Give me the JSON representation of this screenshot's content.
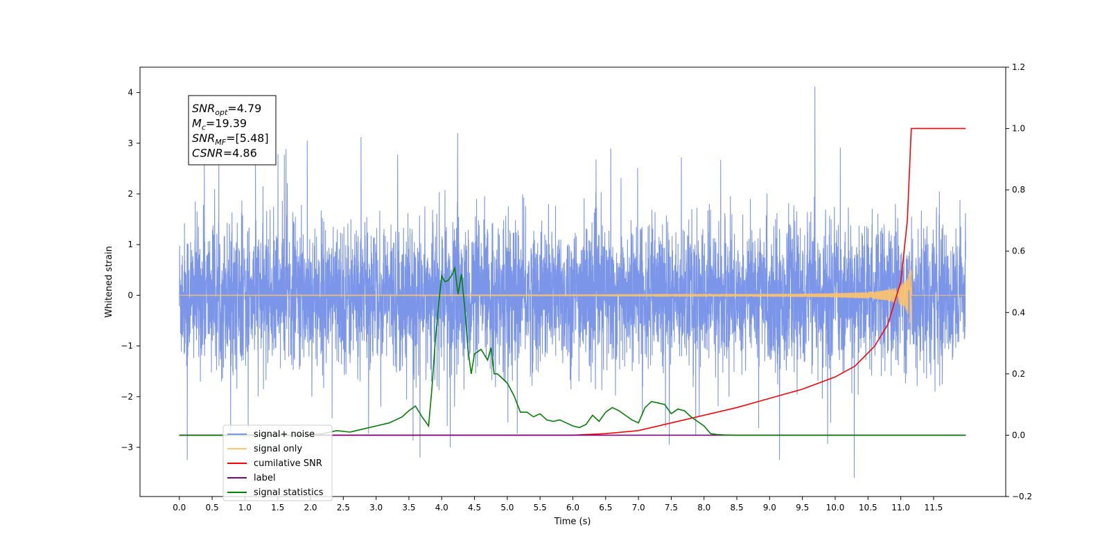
{
  "chart_data": {
    "type": "line",
    "xlabel": "Time (s)",
    "ylabel": "Whitened strain",
    "xlim": [
      -0.6,
      12.6
    ],
    "ylim": [
      -3.97,
      4.5
    ],
    "y2lim": [
      -0.2,
      1.2
    ],
    "x_ticks": [
      "0.0",
      "0.5",
      "1.0",
      "1.5",
      "2.0",
      "2.5",
      "3.0",
      "3.5",
      "4.0",
      "4.5",
      "5.0",
      "5.5",
      "6.0",
      "6.5",
      "7.0",
      "7.5",
      "8.0",
      "8.5",
      "9.0",
      "9.5",
      "10.0",
      "10.5",
      "11.0",
      "11.5"
    ],
    "y_ticks": [
      "4",
      "3",
      "2",
      "1",
      "0",
      "−1",
      "−2",
      "−3"
    ],
    "y2_ticks": [
      "1.2",
      "1.0",
      "0.8",
      "0.6",
      "0.4",
      "0.2",
      "0.0",
      "−0.2"
    ],
    "grid": false,
    "legend_position": "lower-left",
    "annotation": {
      "lines": [
        {
          "sym": "SNR",
          "sub": "opt",
          "value": "=4.79"
        },
        {
          "sym": "M",
          "sub": "c",
          "value": "=19.39"
        },
        {
          "sym": "SNR",
          "sub": "MF",
          "value": "=[5.48]"
        },
        {
          "sym": "CSNR",
          "sub": "",
          "value": "=4.86"
        }
      ]
    },
    "series": [
      {
        "name": "signal+ noise",
        "color": "#7b95e8",
        "axis": "left",
        "description_values": {
          "x_start": 0.0,
          "x_end": 11.99,
          "noise_std": 0.7,
          "peak_max": 4.12,
          "peak_min": -3.6
        }
      },
      {
        "name": "signal only",
        "color": "#ffc36a",
        "axis": "left",
        "chirp_peak_time": 11.16,
        "chirp_peak_amplitude": 0.75
      },
      {
        "name": "cumilative SNR",
        "color": "#ff0000",
        "axis": "right",
        "x": [
          0.0,
          6.0,
          6.5,
          7.0,
          7.5,
          8.0,
          8.5,
          9.0,
          9.5,
          10.0,
          10.3,
          10.6,
          10.8,
          11.0,
          11.1,
          11.16,
          11.99
        ],
        "y": [
          0.0,
          0.0,
          0.005,
          0.015,
          0.04,
          0.065,
          0.09,
          0.12,
          0.15,
          0.19,
          0.225,
          0.29,
          0.36,
          0.5,
          0.7,
          1.0,
          1.0
        ]
      },
      {
        "name": "label",
        "color": "#800080",
        "axis": "right",
        "x": [
          0.0,
          11.99
        ],
        "y": [
          0.0,
          0.0
        ]
      },
      {
        "name": "signal statistics",
        "color": "#008000",
        "axis": "right",
        "x": [
          0.0,
          2.0,
          2.2,
          2.4,
          2.6,
          2.8,
          3.0,
          3.2,
          3.4,
          3.5,
          3.6,
          3.7,
          3.8,
          3.85,
          3.9,
          3.95,
          4.0,
          4.05,
          4.1,
          4.15,
          4.2,
          4.25,
          4.3,
          4.35,
          4.4,
          4.45,
          4.5,
          4.6,
          4.7,
          4.75,
          4.8,
          4.85,
          5.0,
          5.1,
          5.2,
          5.3,
          5.4,
          5.5,
          5.6,
          5.7,
          5.8,
          5.9,
          6.0,
          6.1,
          6.2,
          6.3,
          6.4,
          6.5,
          6.6,
          6.7,
          6.8,
          6.9,
          7.0,
          7.1,
          7.2,
          7.3,
          7.4,
          7.5,
          7.6,
          7.7,
          7.8,
          7.9,
          8.0,
          8.1,
          8.2,
          8.3,
          8.5,
          8.7,
          9.0,
          11.99
        ],
        "y": [
          0.0,
          0.0,
          0.005,
          0.015,
          0.01,
          0.02,
          0.03,
          0.04,
          0.06,
          0.08,
          0.095,
          0.06,
          0.03,
          0.15,
          0.3,
          0.42,
          0.52,
          0.5,
          0.505,
          0.52,
          0.545,
          0.46,
          0.525,
          0.42,
          0.28,
          0.2,
          0.265,
          0.28,
          0.245,
          0.285,
          0.2,
          0.2,
          0.17,
          0.13,
          0.075,
          0.075,
          0.06,
          0.07,
          0.05,
          0.045,
          0.05,
          0.04,
          0.03,
          0.025,
          0.035,
          0.065,
          0.045,
          0.075,
          0.09,
          0.08,
          0.065,
          0.05,
          0.04,
          0.09,
          0.11,
          0.105,
          0.1,
          0.07,
          0.085,
          0.08,
          0.06,
          0.045,
          0.03,
          0.005,
          0.002,
          0.001,
          0.0,
          0.0,
          0.0,
          0.0
        ]
      }
    ],
    "legend_entries": [
      {
        "name": "signal+ noise",
        "color": "#7b95e8"
      },
      {
        "name": "signal only",
        "color": "#ffc36a"
      },
      {
        "name": "cumilative SNR",
        "color": "#ff0000"
      },
      {
        "name": "label",
        "color": "#800080"
      },
      {
        "name": "signal statistics",
        "color": "#008000"
      }
    ]
  }
}
